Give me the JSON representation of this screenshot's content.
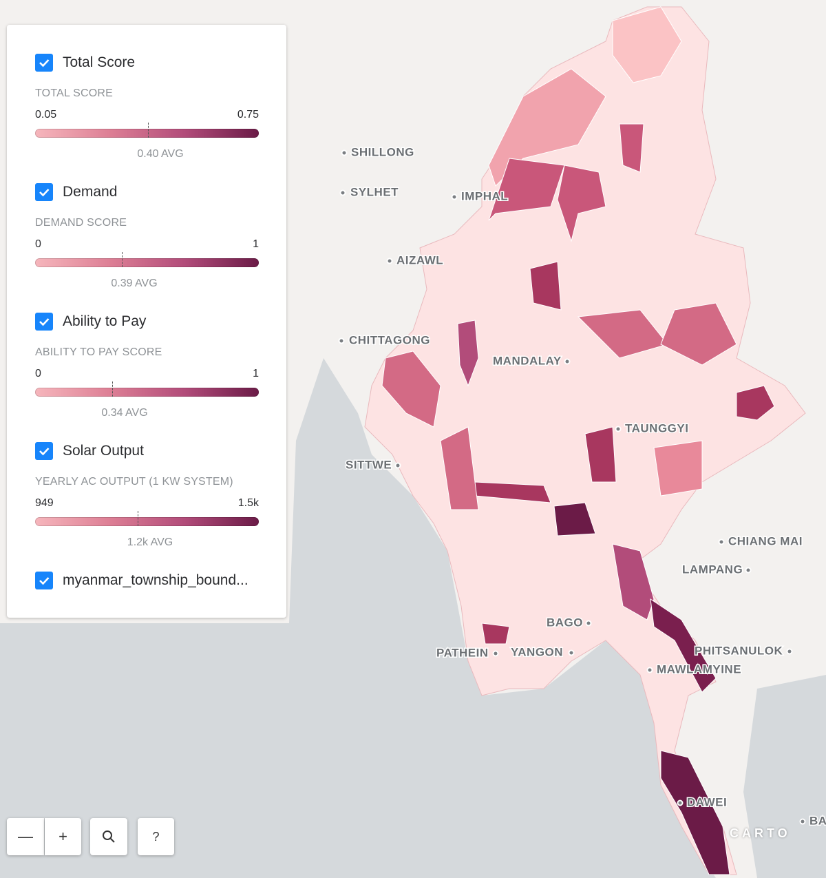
{
  "layers": [
    {
      "title": "Total Score",
      "legend_title": "TOTAL SCORE",
      "min": "0.05",
      "max": "0.75",
      "avg": "0.40 AVG"
    },
    {
      "title": "Demand",
      "legend_title": "DEMAND SCORE",
      "min": "0",
      "max": "1",
      "avg": "0.39 AVG"
    },
    {
      "title": "Ability to Pay",
      "legend_title": "ABILITY TO PAY SCORE",
      "min": "0",
      "max": "1",
      "avg": "0.34 AVG"
    },
    {
      "title": "Solar Output",
      "legend_title": "YEARLY AC OUTPUT (1 KW SYSTEM)",
      "min": "949",
      "max": "1.5k",
      "avg": "1.2k AVG"
    },
    {
      "title": "myanmar_township_bound..."
    }
  ],
  "cities": [
    "SHILLONG",
    "SYLHET",
    "IMPHAL",
    "AIZAWL",
    "CHITTAGONG",
    "MANDALAY",
    "TAUNGGYI",
    "SITTWE",
    "CHIANG MAI",
    "LAMPANG",
    "BAGO",
    "PATHEIN",
    "YANGON",
    "PHITSANULOK",
    "MAWLAMYINE",
    "DAWEI",
    "BA"
  ],
  "controls": {
    "zoom_out": "—",
    "zoom_in": "+",
    "help": "?"
  },
  "attribution": "CARTO"
}
